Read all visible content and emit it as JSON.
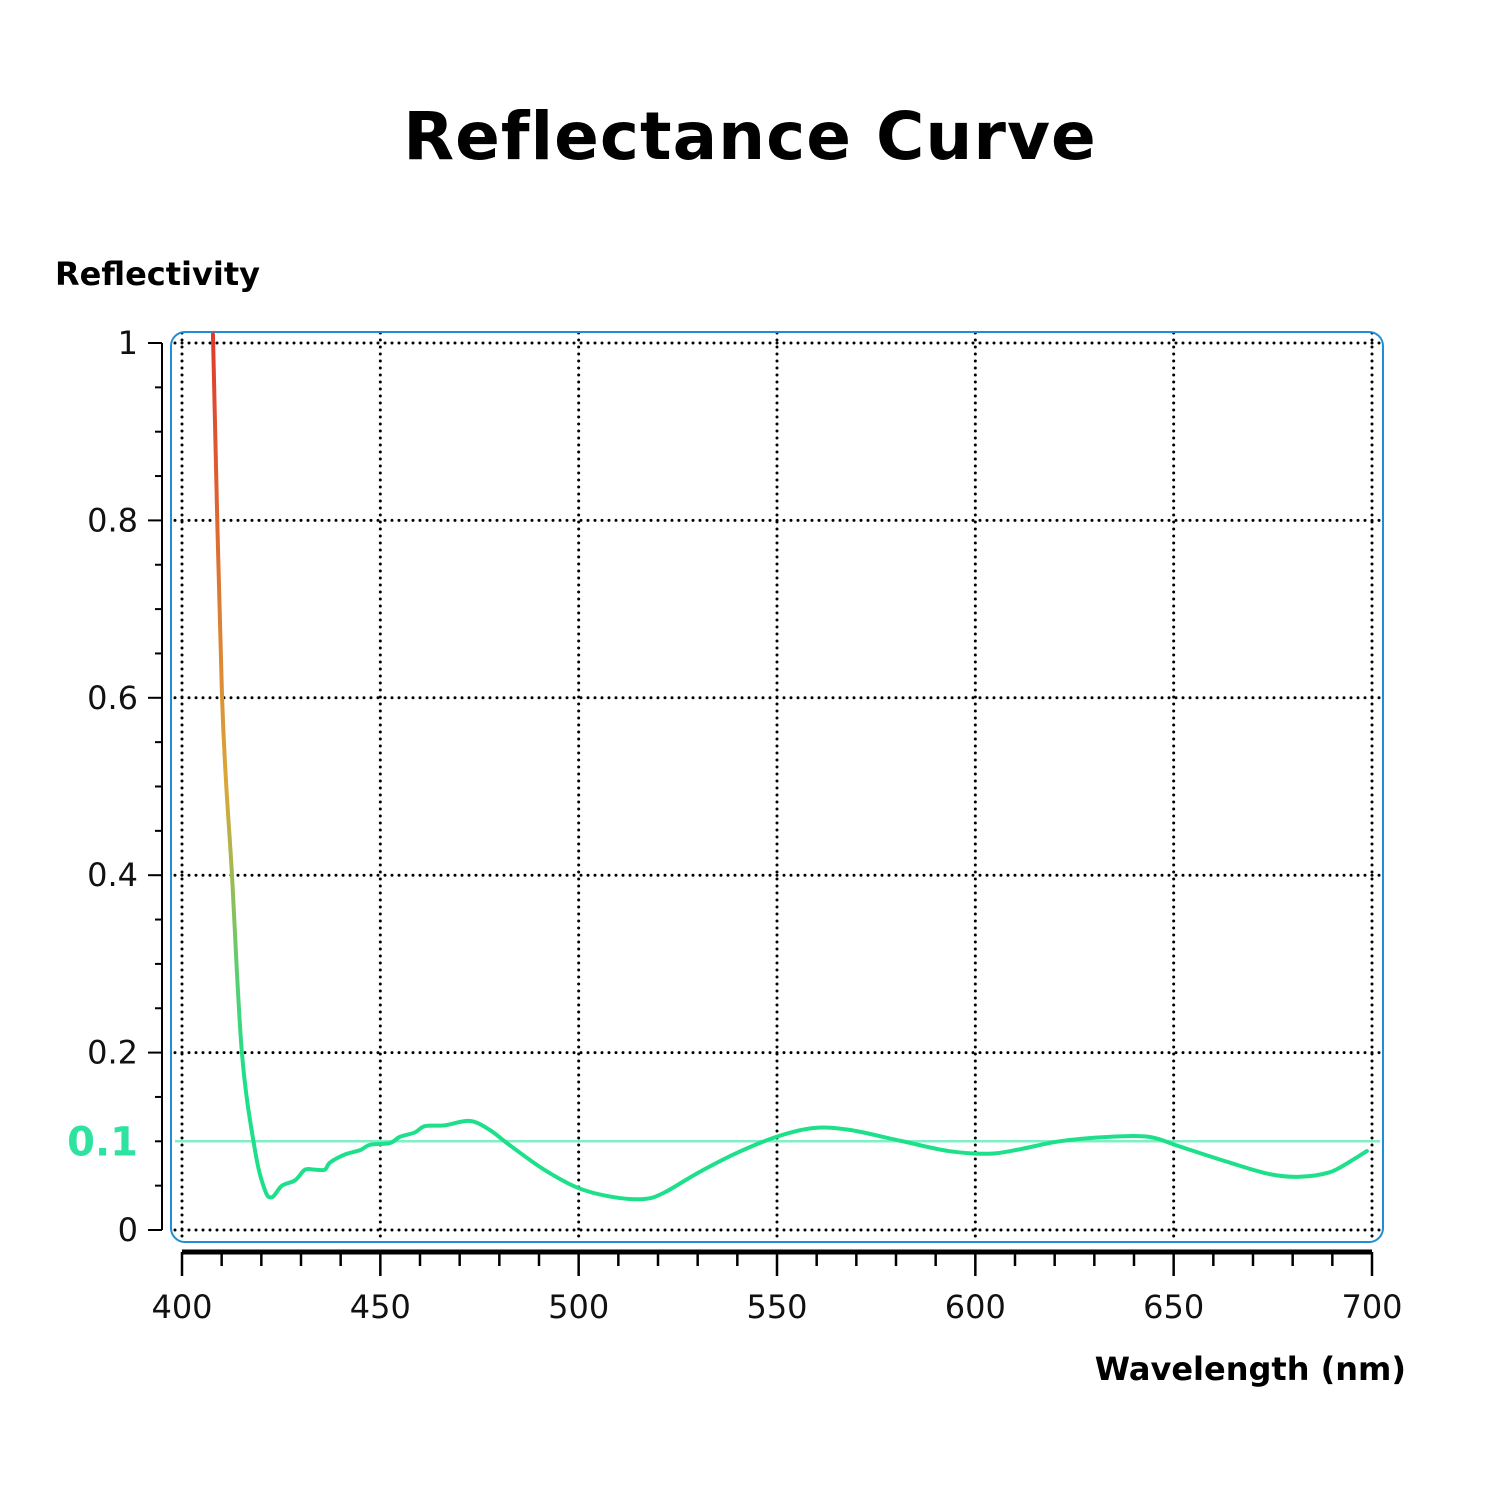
{
  "chart_data": {
    "type": "line",
    "title": "Reflectance Curve",
    "xlabel": "Wavelength (nm)",
    "ylabel": "Reflectivity",
    "xlim": [
      400,
      700
    ],
    "ylim": [
      0,
      1
    ],
    "x_ticks": [
      "400",
      "450",
      "500",
      "550",
      "600",
      "650",
      "700"
    ],
    "y_ticks": [
      "0",
      "0.2",
      "0.4",
      "0.6",
      "0.8",
      "1"
    ],
    "grid": true,
    "reference_line": {
      "y": 0.1,
      "label": "0.1",
      "color": "#2ee3a0"
    },
    "frame_color": "#1e8fd6",
    "line_gradient": {
      "high": "#e03c2c",
      "mid": "#d9a838",
      "low": "#1ee08a"
    },
    "series": [
      {
        "x": [
          407.8,
          410.1,
          412.6,
          415.1,
          418.4,
          420.9,
          422.7,
          425.2,
          428.5,
          431,
          433.5,
          436,
          437.3,
          441,
          444.9,
          447.4,
          452.4,
          454.9,
          458.7,
          461.2,
          466.2,
          472.5,
          477.5,
          482.5,
          491.3,
          500.1,
          508.9,
          516.5,
          521.5,
          530.3,
          540.4,
          550.5,
          559.3,
          568.1,
          580.7,
          593.3,
          603.4,
          611.2,
          621.2,
          633.7,
          643.8,
          651.6,
          664.1,
          674.2,
          681.8,
          689.3,
          694.4,
          698.7
        ],
        "y": [
          1.01,
          0.6,
          0.4,
          0.2,
          0.09,
          0.045,
          0.037,
          0.05,
          0.056,
          0.068,
          0.068,
          0.068,
          0.076,
          0.085,
          0.09,
          0.096,
          0.098,
          0.105,
          0.11,
          0.117,
          0.118,
          0.123,
          0.113,
          0.096,
          0.068,
          0.047,
          0.037,
          0.035,
          0.042,
          0.065,
          0.088,
          0.106,
          0.115,
          0.113,
          0.101,
          0.089,
          0.086,
          0.091,
          0.1,
          0.105,
          0.105,
          0.094,
          0.076,
          0.063,
          0.06,
          0.065,
          0.077,
          0.089
        ]
      }
    ]
  }
}
